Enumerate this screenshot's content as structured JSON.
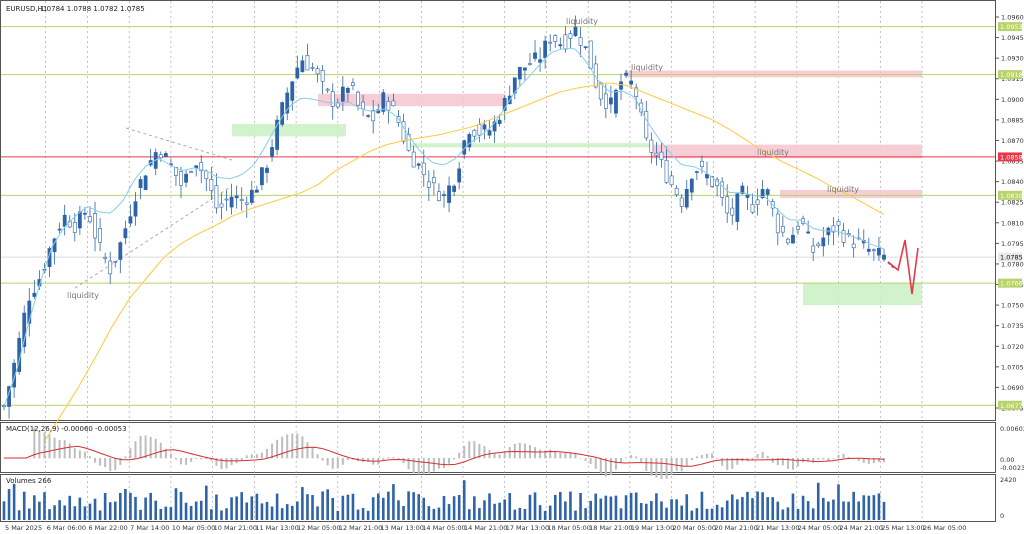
{
  "header": {
    "symbol": "EURUSD,H1",
    "ohlc": "1.0784 1.0788 1.0782 1.0785"
  },
  "colors": {
    "bull": "#2e63a8",
    "bear": "#2e63a8",
    "ema_fast": "#87ceeb",
    "ema_slow": "#ffc93c",
    "level_line": "#b8d36a",
    "level_red": "#e8394a",
    "zone_pink": "#f7c6cf",
    "zone_green": "#c9f0c2",
    "arrow": "#e23b4b",
    "macd_hist": "#bdbdbd",
    "macd_signal": "#d62d2d",
    "volume": "#2e63a8",
    "grid": "#9a9a9a"
  },
  "chart_data": [
    {
      "type": "line",
      "title": "EURUSD,H1",
      "subtitle": "1.0784 1.0788 1.0782 1.0785",
      "ylim": [
        1.067,
        1.0975
      ],
      "y_ticks": [
        "1.0960",
        "1.0945",
        "1.0930",
        "1.0915",
        "1.0900",
        "1.0885",
        "1.0870",
        "1.0855",
        "1.0840",
        "1.0825",
        "1.0810",
        "1.0795",
        "1.0780",
        "1.0765",
        "1.0750",
        "1.0735",
        "1.0720",
        "1.0705",
        "1.0690",
        "1.0675"
      ],
      "x_ticks": [
        "5 Mar 2025",
        "6 Mar 06:00",
        "6 Mar 22:00",
        "7 Mar 14:00",
        "10 Mar 05:00",
        "10 Mar 21:00",
        "11 Mar 13:00",
        "12 Mar 05:00",
        "12 Mar 21:00",
        "13 Mar 13:00",
        "14 Mar 05:00",
        "14 Mar 21:00",
        "17 Mar 13:00",
        "18 Mar 05:00",
        "18 Mar 21:00",
        "19 Mar 13:00",
        "20 Mar 05:00",
        "20 Mar 21:00",
        "21 Mar 13:00",
        "24 Mar 05:00",
        "24 Mar 21:00",
        "25 Mar 13:00",
        "26 Mar 05:00"
      ],
      "close_path": [
        1.0676,
        1.0712,
        1.0755,
        1.077,
        1.0795,
        1.0815,
        1.0808,
        1.082,
        1.0792,
        1.0775,
        1.08,
        1.083,
        1.085,
        1.0865,
        1.0852,
        1.0836,
        1.0858,
        1.0842,
        1.0818,
        1.083,
        1.0826,
        1.0833,
        1.085,
        1.0882,
        1.091,
        1.093,
        1.0922,
        1.0905,
        1.0896,
        1.0912,
        1.089,
        1.0885,
        1.0902,
        1.0888,
        1.0862,
        1.085,
        1.0836,
        1.0829,
        1.0845,
        1.088,
        1.0876,
        1.0878,
        1.0895,
        1.0918,
        1.0925,
        1.093,
        1.0946,
        1.094,
        1.0952,
        1.0935,
        1.0905,
        1.0895,
        1.0915,
        1.091,
        1.0868,
        1.0857,
        1.084,
        1.0826,
        1.0851,
        1.0845,
        1.0835,
        1.0812,
        1.0832,
        1.0822,
        1.0838,
        1.0808,
        1.0797,
        1.0812,
        1.0789,
        1.08,
        1.0808,
        1.0797,
        1.0795,
        1.0788,
        1.0785
      ],
      "ema_fast_path": [
        1.0676,
        1.07,
        1.0735,
        1.0765,
        1.0792,
        1.0806,
        1.0815,
        1.0822,
        1.0818,
        1.0817,
        1.0826,
        1.0842,
        1.0852,
        1.0857,
        1.0852,
        1.0848,
        1.085,
        1.0848,
        1.0843,
        1.0842,
        1.0845,
        1.0852,
        1.0866,
        1.0882,
        1.0895,
        1.0901,
        1.09,
        1.0898,
        1.0897,
        1.0898,
        1.0893,
        1.0891,
        1.0893,
        1.0888,
        1.0874,
        1.0862,
        1.0854,
        1.0852,
        1.0857,
        1.0867,
        1.0873,
        1.088,
        1.0892,
        1.0906,
        1.0915,
        1.0925,
        1.0934,
        1.0937,
        1.0937,
        1.0927,
        1.0913,
        1.0905,
        1.0906,
        1.0902,
        1.0885,
        1.0872,
        1.0861,
        1.0852,
        1.0851,
        1.0847,
        1.084,
        1.0832,
        1.0832,
        1.083,
        1.0829,
        1.082,
        1.0812,
        1.0812,
        1.0806,
        1.0804,
        1.0804,
        1.0801,
        1.0798,
        1.0794,
        1.0791
      ],
      "ema_slow_path": [
        1.065,
        1.067,
        1.069,
        1.0712,
        1.0735,
        1.0755,
        1.077,
        1.0785,
        1.0795,
        1.0802,
        1.0808,
        1.0815,
        1.082,
        1.0824,
        1.0828,
        1.0832,
        1.0838,
        1.0848,
        1.0855,
        1.0862,
        1.0867,
        1.087,
        1.0872,
        1.0874,
        1.0877,
        1.088,
        1.0885,
        1.089,
        1.0895,
        1.09,
        1.0905,
        1.0908,
        1.091,
        1.0912,
        1.091,
        1.0905,
        1.09,
        1.0895,
        1.089,
        1.0885,
        1.0878,
        1.087,
        1.0862,
        1.0855,
        1.0849,
        1.0843,
        1.0836,
        1.083,
        1.0823,
        1.0816
      ],
      "price_labels": [
        {
          "text": "1.0953",
          "kind": "level"
        },
        {
          "text": "1.0918",
          "kind": "level"
        },
        {
          "text": "1.0858",
          "kind": "red"
        },
        {
          "text": "1.0830",
          "kind": "level"
        },
        {
          "text": "1.0785",
          "kind": "current"
        },
        {
          "text": "1.0766",
          "kind": "level"
        },
        {
          "text": "1.0677",
          "kind": "level"
        }
      ],
      "annotations": [
        "liquidity",
        "liquidity",
        "liquidity",
        "liquidity",
        "liquidity"
      ]
    },
    {
      "type": "bar",
      "title": "MACD(12,26,9) -0.00060 -0.00053",
      "y_ticks": [
        "0.00603",
        "0.00",
        "-0.00237"
      ]
    },
    {
      "type": "bar",
      "title": "Volumes 266",
      "y_ticks": [
        "2420",
        "0"
      ]
    }
  ]
}
